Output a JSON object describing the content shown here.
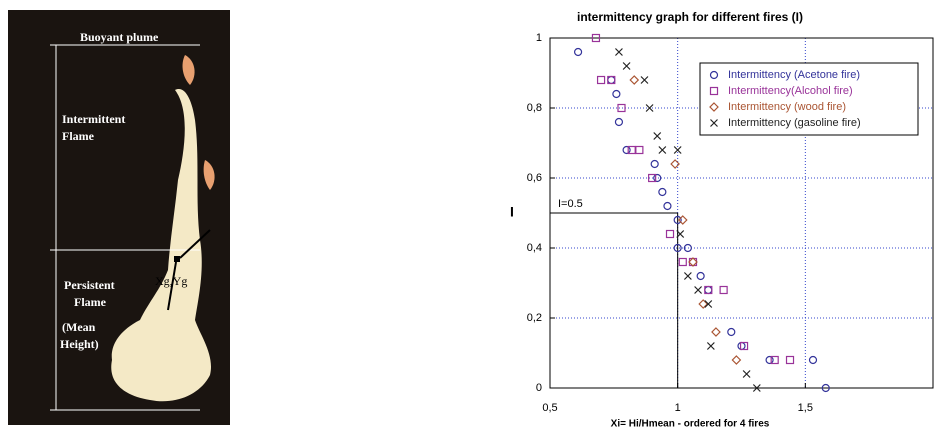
{
  "photo": {
    "labels": [
      "Buoyant  plume",
      "Intermittent",
      "Flame",
      "Persistent",
      "Flame",
      "(Mean",
      "Height)",
      "Xg,Yg"
    ]
  },
  "chart_data": {
    "type": "scatter",
    "title": "intermittency graph for different fires (I)",
    "x_label": "Xi= Hi/Hmean - ordered for 4 fires",
    "y_label": "I",
    "xlim": [
      0.5,
      2
    ],
    "ylim": [
      0,
      1
    ],
    "xticks": [
      {
        "value": 0.5,
        "label": "0,5"
      },
      1,
      {
        "value": 1.5,
        "label": "1,5"
      }
    ],
    "yticks": [
      0,
      {
        "value": 0.2,
        "label": "0,2"
      },
      {
        "value": 0.4,
        "label": "0,4"
      },
      {
        "value": 0.6,
        "label": "0,6"
      },
      {
        "value": 0.8,
        "label": "0,8"
      },
      1
    ],
    "grid": true,
    "legend": "upper right",
    "annotation": {
      "text": "I=0.5",
      "x": 1,
      "y": 0.5
    },
    "series": [
      {
        "name": "Intermittency (Acetone fire)",
        "color": "#33339a",
        "marker": "circle",
        "x": [
          0.61,
          0.74,
          0.76,
          0.77,
          0.8,
          0.91,
          0.92,
          0.94,
          0.96,
          1.0,
          1.0,
          1.04,
          1.09,
          1.12,
          1.21,
          1.25,
          1.36,
          1.53,
          1.58
        ],
        "values": [
          0.96,
          0.88,
          0.84,
          0.76,
          0.68,
          0.64,
          0.6,
          0.56,
          0.52,
          0.48,
          0.4,
          0.4,
          0.32,
          0.28,
          0.16,
          0.12,
          0.08,
          0.08,
          0
        ]
      },
      {
        "name": "Intermittency(Alcohol fire)",
        "color": "#993399",
        "marker": "square",
        "x": [
          0.68,
          0.7,
          0.74,
          0.78,
          0.82,
          0.85,
          0.9,
          0.97,
          1.02,
          1.06,
          1.12,
          1.18,
          1.26,
          1.38,
          1.44
        ],
        "values": [
          1,
          0.88,
          0.88,
          0.8,
          0.68,
          0.68,
          0.6,
          0.44,
          0.36,
          0.36,
          0.28,
          0.28,
          0.12,
          0.08,
          0.08
        ]
      },
      {
        "name": "Intermittency (wood fire)",
        "color": "#aa5533",
        "marker": "diamond",
        "x": [
          0.83,
          0.99,
          1.02,
          1.06,
          1.1,
          1.15,
          1.23
        ],
        "values": [
          0.88,
          0.64,
          0.48,
          0.36,
          0.24,
          0.16,
          0.08
        ]
      },
      {
        "name": "Intermittency (gasoline fire)",
        "color": "#222222",
        "marker": "cross",
        "x": [
          0.77,
          0.8,
          0.87,
          0.89,
          0.92,
          0.94,
          1.0,
          1.01,
          1.04,
          1.08,
          1.12,
          1.13,
          1.27,
          1.31
        ],
        "values": [
          0.96,
          0.92,
          0.88,
          0.8,
          0.72,
          0.68,
          0.68,
          0.44,
          0.32,
          0.28,
          0.24,
          0.12,
          0.04,
          0
        ]
      }
    ]
  }
}
